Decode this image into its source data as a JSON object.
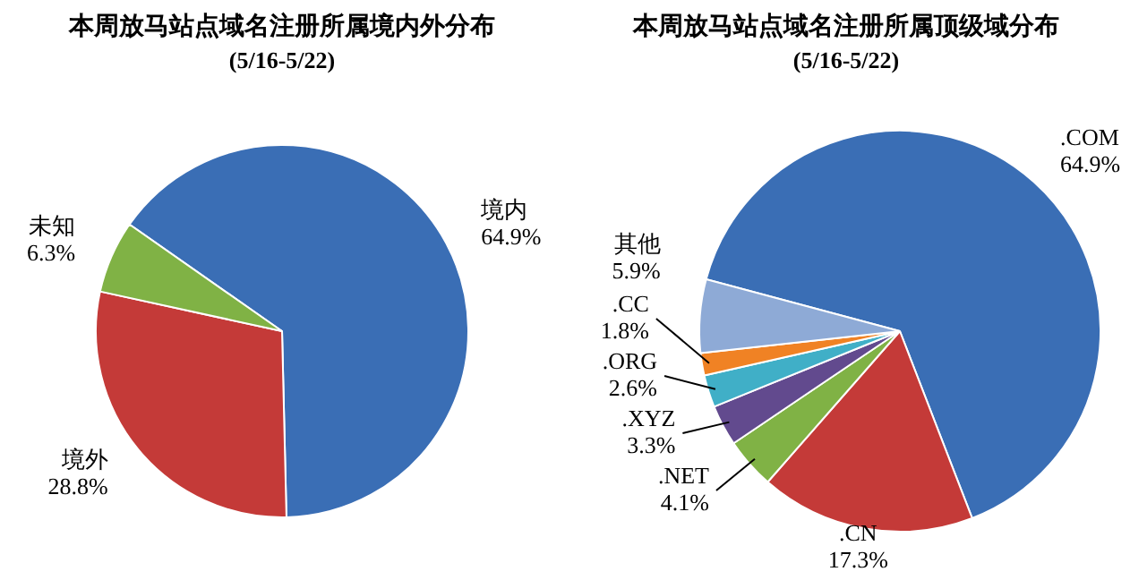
{
  "chart_data": [
    {
      "type": "pie",
      "title": "本周放马站点域名注册所属境内外分布",
      "subtitle": "(5/16-5/22)",
      "categories": [
        "境内",
        "境外",
        "未知"
      ],
      "values": [
        64.9,
        28.8,
        6.3
      ],
      "value_labels": [
        "64.9%",
        "28.8%",
        "6.3%"
      ],
      "colors": [
        "#3a6eb5",
        "#c43a38",
        "#80b245"
      ],
      "legend": false
    },
    {
      "type": "pie",
      "title": "本周放马站点域名注册所属顶级域分布",
      "subtitle": "(5/16-5/22)",
      "categories": [
        ".COM",
        ".CN",
        ".NET",
        ".XYZ",
        ".ORG",
        ".CC",
        "其他"
      ],
      "values": [
        64.9,
        17.3,
        4.1,
        3.3,
        2.6,
        1.8,
        5.9
      ],
      "value_labels": [
        "64.9%",
        "17.3%",
        "4.1%",
        "3.3%",
        "2.6%",
        "1.8%",
        "5.9%"
      ],
      "colors": [
        "#3a6eb5",
        "#c43a38",
        "#80b245",
        "#624a8e",
        "#40afc7",
        "#f08224",
        "#8eaad6"
      ],
      "legend": false
    }
  ]
}
